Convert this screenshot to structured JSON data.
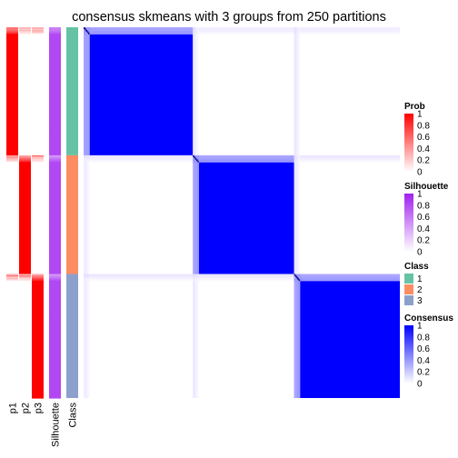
{
  "chart_data": {
    "type": "heatmap",
    "title": "consensus skmeans with 3 groups from 250 partitions",
    "annotation_columns": [
      "p1",
      "p2",
      "p3",
      "Silhouette",
      "Class"
    ],
    "groups": [
      {
        "class": 1,
        "size": 96
      },
      {
        "class": 2,
        "size": 89
      },
      {
        "class": 3,
        "size": 93
      }
    ],
    "colors": {
      "prob": "#ff0000",
      "silhouette": "#a020f0",
      "consensus": "#0000ff",
      "class_1": "#66c2a5",
      "class_2": "#fc8d62",
      "class_3": "#8da0cb"
    },
    "legends": [
      {
        "title": "Prob",
        "type": "gradient",
        "color_low": "#ffffff",
        "color_high": "#ff0000",
        "ticks": [
          "1",
          "0.8",
          "0.6",
          "0.4",
          "0.2",
          "0"
        ]
      },
      {
        "title": "Silhouette",
        "type": "gradient",
        "color_low": "#ffffff",
        "color_high": "#a020f0",
        "ticks": [
          "1",
          "0.8",
          "0.6",
          "0.4",
          "0.2",
          "0"
        ]
      },
      {
        "title": "Class",
        "type": "discrete",
        "items": [
          {
            "label": "1",
            "color": "#66c2a5"
          },
          {
            "label": "2",
            "color": "#fc8d62"
          },
          {
            "label": "3",
            "color": "#8da0cb"
          }
        ]
      },
      {
        "title": "Consensus",
        "type": "gradient",
        "color_low": "#ffffff",
        "color_high": "#0000ff",
        "ticks": [
          "1",
          "0.8",
          "0.6",
          "0.4",
          "0.2",
          "0"
        ]
      }
    ]
  }
}
